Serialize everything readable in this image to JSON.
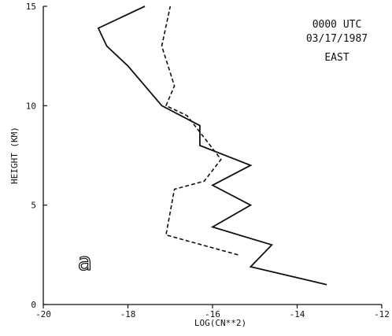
{
  "chart_data": {
    "type": "line",
    "title": "",
    "xlabel": "LOG(CN**2)",
    "ylabel": "HEIGHT (KM)",
    "xlim": [
      -20,
      -12
    ],
    "ylim": [
      0,
      15
    ],
    "x_ticks": [
      -20,
      -18,
      -16,
      -14,
      -12
    ],
    "y_ticks": [
      0,
      5,
      10,
      15
    ],
    "grid": false,
    "annotations": [
      "0000 UTC",
      "03/17/1987",
      "EAST"
    ],
    "panel_label": "a",
    "series": [
      {
        "style": "solid",
        "points": [
          [
            -13.3,
            1.0
          ],
          [
            -15.1,
            1.9
          ],
          [
            -14.6,
            3.0
          ],
          [
            -16.0,
            3.9
          ],
          [
            -15.1,
            5.0
          ],
          [
            -16.0,
            6.0
          ],
          [
            -15.1,
            7.0
          ],
          [
            -16.3,
            8.0
          ],
          [
            -16.3,
            9.0
          ],
          [
            -17.2,
            10.0
          ],
          [
            -18.0,
            12.0
          ],
          [
            -18.5,
            13.0
          ],
          [
            -18.7,
            13.9
          ],
          [
            -17.6,
            15.0
          ]
        ]
      },
      {
        "style": "dashed",
        "points": [
          [
            -15.4,
            2.5
          ],
          [
            -17.1,
            3.5
          ],
          [
            -16.9,
            5.8
          ],
          [
            -16.2,
            6.2
          ],
          [
            -15.8,
            7.3
          ],
          [
            -16.6,
            9.5
          ],
          [
            -17.1,
            10.0
          ],
          [
            -16.9,
            11.0
          ],
          [
            -17.2,
            13.0
          ],
          [
            -17.0,
            15.0
          ]
        ]
      }
    ],
    "colors": {
      "line": "#111111",
      "axis": "#111111"
    }
  }
}
